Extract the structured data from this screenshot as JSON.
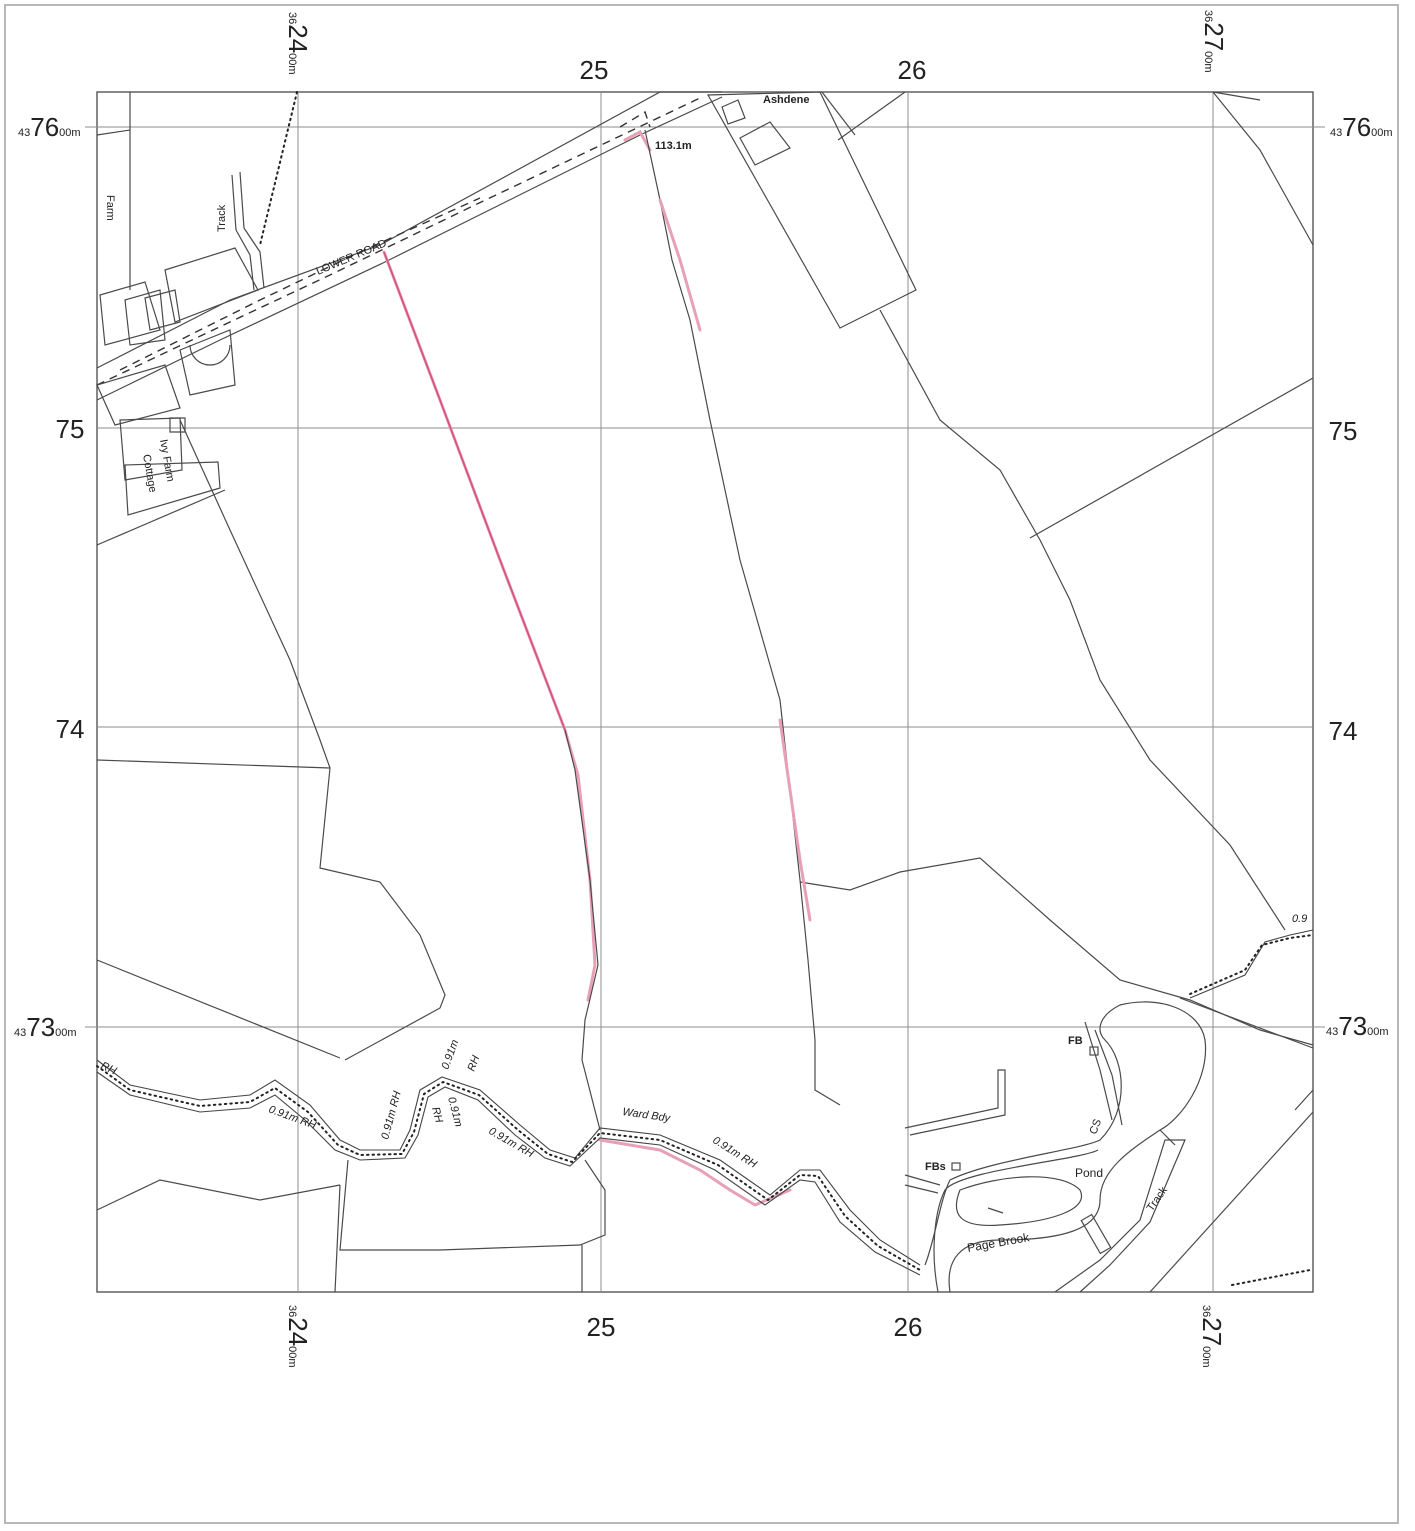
{
  "grid_labels": {
    "top_easting_24": {
      "prefix": "36",
      "main": "24",
      "suffix": "00m"
    },
    "top_25": "25",
    "top_26": "26",
    "top_easting_27": {
      "prefix": "36",
      "main": "27",
      "suffix": "00m"
    },
    "bottom_easting_24": {
      "prefix": "36",
      "main": "24",
      "suffix": "00m"
    },
    "bottom_25": "25",
    "bottom_26": "26",
    "bottom_easting_27": {
      "prefix": "36",
      "main": "27",
      "suffix": "00m"
    },
    "left_northing_76": {
      "prefix": "43",
      "main": "76",
      "suffix": "00m"
    },
    "left_75": "75",
    "left_74": "74",
    "left_northing_73": {
      "prefix": "43",
      "main": "73",
      "suffix": "00m"
    },
    "right_northing_76": {
      "prefix": "43",
      "main": "76",
      "suffix": "00m"
    },
    "right_75": "75",
    "right_74": "74",
    "right_northing_73": {
      "prefix": "43",
      "main": "73",
      "suffix": "00m"
    }
  },
  "features": {
    "lower_road": "LOWER ROAD",
    "ashdene": "Ashdene",
    "spot_height": "113.1m",
    "track_nw": "Track",
    "track_se": "Track",
    "farm_nw": "Farm",
    "ivy_farm": "Ivy Farm",
    "cottage": "Cottage",
    "pond": "Pond",
    "page_brook": "Page Brook",
    "fb": "FB",
    "fbs": "FBs",
    "ward_bdy": "Ward Bdy",
    "cs": "CS",
    "rh_1": "RH",
    "rh_2": "0.91m RH",
    "rh_3": "0.91m RH",
    "rh_4": "0.91m RH",
    "rh_5": "0.91m",
    "rh_6": "RH",
    "rh_7": "0.91m",
    "rh_8": "RH",
    "rh_9": "0.91m RH",
    "rh_10": "0.9"
  },
  "colors": {
    "boundary_highlight": "#e7a0b5",
    "grid_line": "#8d8d8d",
    "map_line": "#4a4a4a"
  }
}
